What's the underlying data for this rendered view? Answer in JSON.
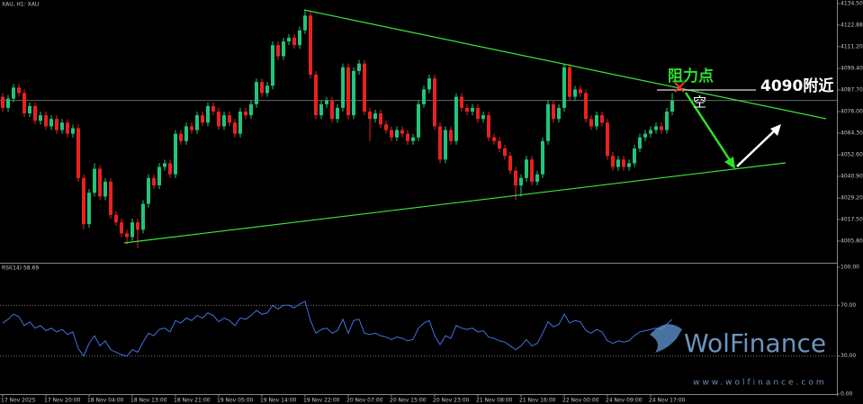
{
  "chart_data": [
    {
      "type": "candlestick",
      "title": "XAU, H1: XAU",
      "categories": [
        "17 Nov 2025",
        null,
        null,
        null,
        null,
        null,
        null,
        null,
        "17 Nov 20:00",
        null,
        null,
        null,
        null,
        null,
        null,
        null,
        "18 Nov 04:00",
        null,
        null,
        null,
        null,
        null,
        null,
        null,
        "18 Nov 13:00",
        null,
        null,
        null,
        null,
        null,
        null,
        null,
        "18 Nov 21:00",
        null,
        null,
        null,
        null,
        null,
        null,
        null,
        "19 Nov 05:00",
        null,
        null,
        null,
        null,
        null,
        null,
        null,
        "19 Nov 14:00",
        null,
        null,
        null,
        null,
        null,
        null,
        null,
        "19 Nov 22:00",
        null,
        null,
        null,
        null,
        null,
        null,
        null,
        "20 Nov 07:00",
        null,
        null,
        null,
        null,
        null,
        null,
        null,
        "20 Nov 15:00",
        null,
        null,
        null,
        null,
        null,
        null,
        null,
        "20 Nov 23:00",
        null,
        null,
        null,
        null,
        null,
        null,
        null,
        "21 Nov 08:00",
        null,
        null,
        null,
        null,
        null,
        null,
        null,
        "21 Nov 16:00",
        null,
        null,
        null,
        null,
        null,
        null,
        null,
        "22 Nov 00:00",
        null,
        null,
        null,
        null,
        null,
        null,
        null,
        "24 Nov 09:00",
        null,
        null,
        null,
        null,
        null,
        null,
        null,
        "24 Nov 17:00",
        null,
        null,
        null,
        null
      ],
      "open": [
        4084,
        4078,
        4083,
        4089,
        4086,
        4075,
        4079,
        4071,
        4074,
        4068,
        4072,
        4066,
        4070,
        4064,
        4067,
        4040,
        4015,
        4032,
        4045,
        4030,
        4038,
        4020,
        4016,
        4010,
        4008,
        4016,
        4012,
        4026,
        4040,
        4036,
        4046,
        4048,
        4042,
        4064,
        4060,
        4068,
        4066,
        4074,
        4070,
        4079,
        4076,
        4068,
        4074,
        4070,
        4064,
        4076,
        4074,
        4080,
        4092,
        4086,
        4090,
        4112,
        4106,
        4114,
        4116,
        4112,
        4120,
        4128,
        4096,
        4074,
        4080,
        4082,
        4072,
        4078,
        4100,
        4074,
        4098,
        4102,
        4076,
        4072,
        4075,
        4069,
        4066,
        4062,
        4066,
        4064,
        4060,
        4062,
        4080,
        4088,
        4094,
        4068,
        4050,
        4066,
        4060,
        4084,
        4078,
        4076,
        4078,
        4072,
        4074,
        4062,
        4060,
        4056,
        4052,
        4044,
        4036,
        4040,
        4050,
        4038,
        4042,
        4060,
        4080,
        4072,
        4078,
        4100,
        4084,
        4088,
        4086,
        4072,
        4068,
        4074,
        4070,
        4052,
        4046,
        4050,
        4046,
        4048,
        4056,
        4062,
        4064,
        4066,
        4068,
        4066,
        4076
      ],
      "high": [
        4086,
        4085,
        4091,
        4091,
        4088,
        4081,
        4081,
        4076,
        4076,
        4074,
        4074,
        4072,
        4072,
        4069,
        4069,
        4042,
        4034,
        4048,
        4047,
        4040,
        4040,
        4022,
        4018,
        4012,
        4018,
        4018,
        4028,
        4042,
        4042,
        4048,
        4050,
        4050,
        4066,
        4066,
        4070,
        4070,
        4076,
        4076,
        4081,
        4081,
        4078,
        4076,
        4076,
        4072,
        4078,
        4078,
        4082,
        4094,
        4094,
        4092,
        4114,
        4114,
        4116,
        4118,
        4118,
        4122,
        4131,
        4130,
        4098,
        4082,
        4084,
        4084,
        4080,
        4102,
        4102,
        4100,
        4104,
        4104,
        4078,
        4077,
        4077,
        4071,
        4068,
        4068,
        4068,
        4066,
        4064,
        4082,
        4090,
        4096,
        4096,
        4070,
        4068,
        4068,
        4086,
        4086,
        4080,
        4080,
        4080,
        4076,
        4076,
        4064,
        4062,
        4058,
        4054,
        4046,
        4042,
        4052,
        4052,
        4044,
        4062,
        4082,
        4082,
        4080,
        4102,
        4102,
        4090,
        4090,
        4088,
        4074,
        4076,
        4076,
        4072,
        4054,
        4052,
        4052,
        4050,
        4058,
        4064,
        4066,
        4068,
        4070,
        4070,
        4078,
        4086
      ],
      "low": [
        4076,
        4076,
        4081,
        4084,
        4073,
        4073,
        4069,
        4069,
        4066,
        4066,
        4064,
        4064,
        4062,
        4062,
        4038,
        4012,
        4013,
        4030,
        4028,
        4028,
        4018,
        4014,
        4008,
        4004,
        4006,
        4002,
        4010,
        4024,
        4034,
        4034,
        4044,
        4040,
        4040,
        4058,
        4058,
        4064,
        4064,
        4068,
        4068,
        4074,
        4066,
        4066,
        4068,
        4062,
        4062,
        4072,
        4072,
        4078,
        4084,
        4084,
        4088,
        4104,
        4104,
        4112,
        4110,
        4110,
        4118,
        4094,
        4072,
        4072,
        4078,
        4070,
        4070,
        4076,
        4072,
        4072,
        4096,
        4074,
        4060,
        4070,
        4067,
        4064,
        4060,
        4060,
        4062,
        4058,
        4058,
        4060,
        4078,
        4086,
        4066,
        4048,
        4048,
        4058,
        4058,
        4076,
        4074,
        4074,
        4070,
        4070,
        4060,
        4058,
        4054,
        4050,
        4042,
        4028,
        4030,
        4038,
        4036,
        4036,
        4040,
        4058,
        4070,
        4070,
        4076,
        4082,
        4082,
        4084,
        4070,
        4066,
        4066,
        4068,
        4050,
        4044,
        4044,
        4044,
        4044,
        4046,
        4054,
        4060,
        4062,
        4064,
        4064,
        4064,
        4074
      ],
      "close": [
        4078,
        4083,
        4089,
        4086,
        4075,
        4079,
        4071,
        4074,
        4068,
        4072,
        4066,
        4070,
        4064,
        4067,
        4040,
        4015,
        4032,
        4045,
        4030,
        4038,
        4020,
        4016,
        4010,
        4008,
        4016,
        4012,
        4026,
        4040,
        4036,
        4046,
        4048,
        4042,
        4064,
        4060,
        4068,
        4066,
        4074,
        4070,
        4079,
        4076,
        4068,
        4074,
        4070,
        4064,
        4076,
        4074,
        4080,
        4092,
        4086,
        4090,
        4112,
        4106,
        4114,
        4116,
        4112,
        4120,
        4128,
        4096,
        4074,
        4080,
        4082,
        4072,
        4078,
        4100,
        4074,
        4098,
        4102,
        4076,
        4072,
        4075,
        4069,
        4066,
        4062,
        4066,
        4064,
        4060,
        4062,
        4080,
        4088,
        4094,
        4068,
        4050,
        4066,
        4060,
        4084,
        4078,
        4076,
        4078,
        4072,
        4074,
        4062,
        4060,
        4056,
        4052,
        4044,
        4036,
        4040,
        4050,
        4038,
        4042,
        4060,
        4080,
        4072,
        4078,
        4100,
        4084,
        4088,
        4086,
        4072,
        4068,
        4074,
        4070,
        4052,
        4046,
        4050,
        4046,
        4048,
        4056,
        4062,
        4064,
        4066,
        4068,
        4066,
        4076,
        4082
      ],
      "up_color": "#22c47a",
      "down_color": "#e8221e",
      "ylim": [
        3994.1,
        4136.45
      ],
      "yticks": [
        {
          "value": 4134.5,
          "label": "4134.50"
        },
        {
          "value": 4122.88,
          "label": "4122.88"
        },
        {
          "value": 4111.2,
          "label": "4111.20"
        },
        {
          "value": 4099.4,
          "label": "4099.40"
        },
        {
          "value": 4087.7,
          "label": "4087.70"
        },
        {
          "value": 4076,
          "label": "4076.00"
        },
        {
          "value": 4064.3,
          "label": "4064.30"
        },
        {
          "value": 4052.6,
          "label": "4052.60"
        },
        {
          "value": 4040.9,
          "label": "4040.90"
        },
        {
          "value": 4029.2,
          "label": "4029.20"
        },
        {
          "value": 4017.5,
          "label": "4017.50"
        },
        {
          "value": 4005.8,
          "label": "4005.80"
        }
      ]
    },
    {
      "type": "line",
      "title": "RSI(14) 58.69",
      "color": "#3d74e0",
      "values": [
        56,
        59,
        63,
        61,
        54,
        57,
        52,
        54,
        50,
        52,
        49,
        51,
        47,
        49,
        36,
        30,
        40,
        46,
        38,
        42,
        35,
        33,
        31,
        30,
        35,
        33,
        41,
        48,
        46,
        51,
        52,
        49,
        58,
        56,
        60,
        58,
        62,
        60,
        64,
        62,
        57,
        60,
        58,
        54,
        60,
        59,
        62,
        66,
        63,
        64,
        70,
        67,
        70,
        70,
        68,
        71,
        73,
        58,
        48,
        51,
        52,
        48,
        50,
        59,
        48,
        58,
        59,
        48,
        47,
        48,
        46,
        45,
        43,
        45,
        44,
        42,
        43,
        52,
        56,
        58,
        46,
        39,
        46,
        44,
        54,
        52,
        51,
        52,
        49,
        50,
        45,
        44,
        42,
        41,
        38,
        35,
        38,
        43,
        38,
        40,
        48,
        57,
        53,
        55,
        63,
        56,
        58,
        57,
        50,
        48,
        51,
        49,
        42,
        40,
        42,
        41,
        42,
        46,
        49,
        50,
        51,
        52,
        51,
        55,
        59
      ],
      "ylim": [
        0,
        100
      ],
      "yticks": [
        {
          "value": 100,
          "label": "100.00"
        },
        {
          "value": 70,
          "label": "70.00"
        },
        {
          "value": 30,
          "label": "30.00"
        },
        {
          "value": 0,
          "label": "0.00"
        }
      ]
    }
  ],
  "annotations": {
    "resistance": "阻力点",
    "level": "4090附近",
    "short": "空"
  },
  "watermark": {
    "brand": "WolFinance",
    "url": "www.wolfinance.com"
  }
}
